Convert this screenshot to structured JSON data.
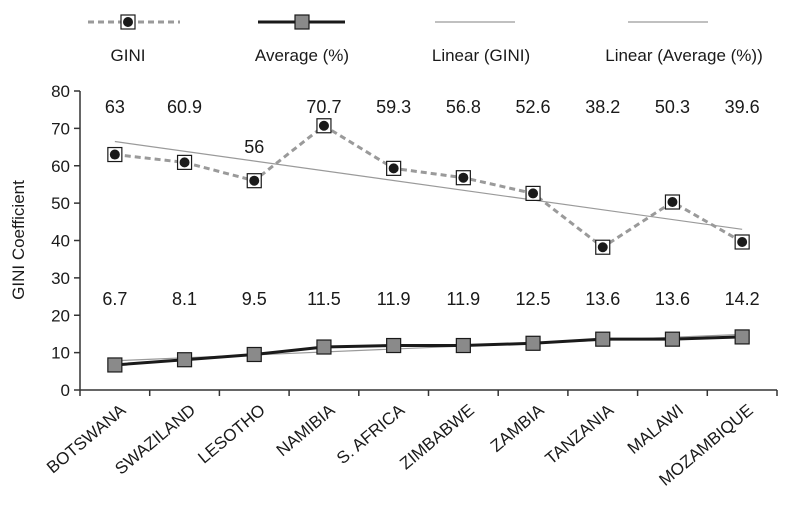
{
  "chart_data": {
    "type": "line",
    "categories": [
      "BOTSWANA",
      "SWAZILAND",
      "LESOTHO",
      "NAMIBIA",
      "S. AFRICA",
      "ZIMBABWE",
      "ZAMBIA",
      "TANZANIA",
      "MALAWI",
      "MOZAMBIQUE"
    ],
    "series": [
      {
        "name": "GINI",
        "values": [
          63,
          60.9,
          56,
          70.7,
          59.3,
          56.8,
          52.6,
          38.2,
          50.3,
          39.6
        ],
        "labels": [
          "63",
          "60.9",
          "56",
          "70.7",
          "59.3",
          "56.8",
          "52.6",
          "38.2",
          "50.3",
          "39.6"
        ]
      },
      {
        "name": "Average (%)",
        "values": [
          6.7,
          8.1,
          9.5,
          11.5,
          11.9,
          11.9,
          12.5,
          13.6,
          13.6,
          14.2
        ],
        "labels": [
          "6.7",
          "8.1",
          "9.5",
          "11.5",
          "11.9",
          "11.9",
          "12.5",
          "13.6",
          "13.6",
          "14.2"
        ]
      }
    ],
    "trendlines": [
      {
        "name": "Linear (GINI)",
        "of": "GINI"
      },
      {
        "name": "Linear (Average (%))",
        "of": "Average (%)"
      }
    ],
    "title": "",
    "xlabel": "",
    "ylabel": "GINI Coefficient",
    "ylim": [
      0,
      80
    ],
    "yticks": [
      "0",
      "10",
      "20",
      "30",
      "40",
      "50",
      "60",
      "70",
      "80"
    ],
    "grid": false,
    "legend_position": "top",
    "colors": {
      "gini_line": "#9a9a9a",
      "marker_fill": "#1a1a1a",
      "average_line": "#1a1a1a",
      "average_marker": "#8a8a8a",
      "trend_line": "#9a9a9a",
      "axis": "#333333"
    }
  }
}
